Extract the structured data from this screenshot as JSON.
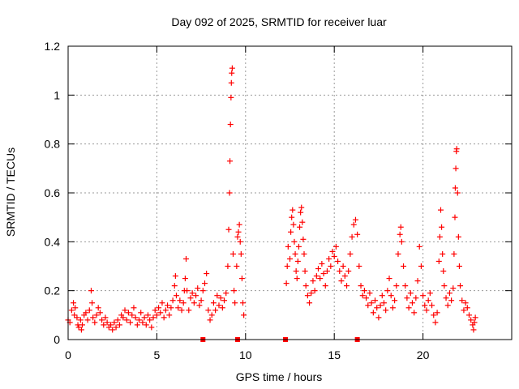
{
  "chart_data": {
    "type": "scatter",
    "title": "Day 092 of 2025, SRMTID for receiver luar",
    "xlabel": "GPS time / hours",
    "ylabel": "SRMTID / TECUs",
    "xlim": [
      0,
      25
    ],
    "ylim": [
      0,
      1.2
    ],
    "xticks": [
      0,
      5,
      10,
      15,
      20
    ],
    "yticks": [
      0,
      0.2,
      0.4,
      0.6,
      0.8,
      1,
      1.2
    ],
    "ytick_labels": [
      "0",
      "0.2",
      "0.4",
      "0.6",
      "0.8",
      "1",
      "1.2"
    ],
    "grid": true,
    "marker": "+",
    "color": "#ff0000",
    "series": [
      {
        "name": "SRMTID",
        "points": [
          [
            0.0,
            0.08
          ],
          [
            0.1,
            0.07
          ],
          [
            0.2,
            0.12
          ],
          [
            0.3,
            0.15
          ],
          [
            0.35,
            0.1
          ],
          [
            0.4,
            0.13
          ],
          [
            0.5,
            0.09
          ],
          [
            0.55,
            0.06
          ],
          [
            0.6,
            0.05
          ],
          [
            0.7,
            0.08
          ],
          [
            0.75,
            0.04
          ],
          [
            0.8,
            0.06
          ],
          [
            0.9,
            0.1
          ],
          [
            1.0,
            0.11
          ],
          [
            1.1,
            0.08
          ],
          [
            1.2,
            0.12
          ],
          [
            1.3,
            0.2
          ],
          [
            1.35,
            0.15
          ],
          [
            1.4,
            0.09
          ],
          [
            1.5,
            0.07
          ],
          [
            1.6,
            0.1
          ],
          [
            1.7,
            0.13
          ],
          [
            1.8,
            0.11
          ],
          [
            1.9,
            0.08
          ],
          [
            2.0,
            0.06
          ],
          [
            2.1,
            0.09
          ],
          [
            2.2,
            0.07
          ],
          [
            2.3,
            0.05
          ],
          [
            2.4,
            0.06
          ],
          [
            2.5,
            0.04
          ],
          [
            2.6,
            0.07
          ],
          [
            2.7,
            0.05
          ],
          [
            2.8,
            0.08
          ],
          [
            2.9,
            0.06
          ],
          [
            3.0,
            0.1
          ],
          [
            3.1,
            0.09
          ],
          [
            3.2,
            0.12
          ],
          [
            3.3,
            0.08
          ],
          [
            3.4,
            0.11
          ],
          [
            3.5,
            0.07
          ],
          [
            3.6,
            0.1
          ],
          [
            3.7,
            0.13
          ],
          [
            3.8,
            0.09
          ],
          [
            3.9,
            0.06
          ],
          [
            4.0,
            0.08
          ],
          [
            4.1,
            0.11
          ],
          [
            4.2,
            0.07
          ],
          [
            4.3,
            0.09
          ],
          [
            4.4,
            0.06
          ],
          [
            4.5,
            0.1
          ],
          [
            4.6,
            0.08
          ],
          [
            4.7,
            0.05
          ],
          [
            4.8,
            0.09
          ],
          [
            4.9,
            0.12
          ],
          [
            5.0,
            0.1
          ],
          [
            5.1,
            0.13
          ],
          [
            5.2,
            0.11
          ],
          [
            5.3,
            0.15
          ],
          [
            5.4,
            0.09
          ],
          [
            5.5,
            0.12
          ],
          [
            5.6,
            0.14
          ],
          [
            5.7,
            0.1
          ],
          [
            5.8,
            0.13
          ],
          [
            5.9,
            0.16
          ],
          [
            6.0,
            0.22
          ],
          [
            6.05,
            0.26
          ],
          [
            6.1,
            0.18
          ],
          [
            6.2,
            0.13
          ],
          [
            6.3,
            0.16
          ],
          [
            6.4,
            0.12
          ],
          [
            6.5,
            0.15
          ],
          [
            6.55,
            0.2
          ],
          [
            6.6,
            0.25
          ],
          [
            6.65,
            0.33
          ],
          [
            6.7,
            0.2
          ],
          [
            6.8,
            0.12
          ],
          [
            6.9,
            0.17
          ],
          [
            7.0,
            0.19
          ],
          [
            7.1,
            0.15
          ],
          [
            7.2,
            0.18
          ],
          [
            7.3,
            0.21
          ],
          [
            7.4,
            0.14
          ],
          [
            7.5,
            0.16
          ],
          [
            7.6,
            0.2
          ],
          [
            7.7,
            0.23
          ],
          [
            7.8,
            0.27
          ],
          [
            7.9,
            0.12
          ],
          [
            8.0,
            0.08
          ],
          [
            8.1,
            0.1
          ],
          [
            8.2,
            0.15
          ],
          [
            8.3,
            0.12
          ],
          [
            8.4,
            0.18
          ],
          [
            8.5,
            0.14
          ],
          [
            8.6,
            0.17
          ],
          [
            8.7,
            0.13
          ],
          [
            8.8,
            0.16
          ],
          [
            8.9,
            0.19
          ],
          [
            9.0,
            0.3
          ],
          [
            9.05,
            0.45
          ],
          [
            9.1,
            0.6
          ],
          [
            9.12,
            0.73
          ],
          [
            9.15,
            0.88
          ],
          [
            9.18,
            0.99
          ],
          [
            9.2,
            1.05
          ],
          [
            9.22,
            1.09
          ],
          [
            9.25,
            1.11
          ],
          [
            9.3,
            0.35
          ],
          [
            9.35,
            0.2
          ],
          [
            9.4,
            0.15
          ],
          [
            9.5,
            0.3
          ],
          [
            9.55,
            0.42
          ],
          [
            9.6,
            0.44
          ],
          [
            9.65,
            0.47
          ],
          [
            9.7,
            0.4
          ],
          [
            9.75,
            0.35
          ],
          [
            9.8,
            0.25
          ],
          [
            9.85,
            0.15
          ],
          [
            9.9,
            0.1
          ],
          [
            12.3,
            0.23
          ],
          [
            12.35,
            0.3
          ],
          [
            12.4,
            0.38
          ],
          [
            12.5,
            0.33
          ],
          [
            12.55,
            0.44
          ],
          [
            12.6,
            0.5
          ],
          [
            12.65,
            0.53
          ],
          [
            12.7,
            0.47
          ],
          [
            12.75,
            0.4
          ],
          [
            12.8,
            0.35
          ],
          [
            12.85,
            0.28
          ],
          [
            12.9,
            0.25
          ],
          [
            12.95,
            0.32
          ],
          [
            13.0,
            0.38
          ],
          [
            13.05,
            0.46
          ],
          [
            13.1,
            0.52
          ],
          [
            13.15,
            0.54
          ],
          [
            13.2,
            0.48
          ],
          [
            13.25,
            0.41
          ],
          [
            13.3,
            0.35
          ],
          [
            13.35,
            0.28
          ],
          [
            13.4,
            0.22
          ],
          [
            13.5,
            0.18
          ],
          [
            13.6,
            0.15
          ],
          [
            13.7,
            0.19
          ],
          [
            13.8,
            0.24
          ],
          [
            13.9,
            0.2
          ],
          [
            14.0,
            0.26
          ],
          [
            14.1,
            0.29
          ],
          [
            14.2,
            0.25
          ],
          [
            14.3,
            0.31
          ],
          [
            14.4,
            0.27
          ],
          [
            14.5,
            0.22
          ],
          [
            14.6,
            0.28
          ],
          [
            14.7,
            0.33
          ],
          [
            14.8,
            0.3
          ],
          [
            14.9,
            0.36
          ],
          [
            15.0,
            0.34
          ],
          [
            15.1,
            0.38
          ],
          [
            15.2,
            0.32
          ],
          [
            15.3,
            0.28
          ],
          [
            15.4,
            0.24
          ],
          [
            15.5,
            0.3
          ],
          [
            15.6,
            0.26
          ],
          [
            15.7,
            0.22
          ],
          [
            15.8,
            0.28
          ],
          [
            15.9,
            0.35
          ],
          [
            16.0,
            0.42
          ],
          [
            16.1,
            0.47
          ],
          [
            16.2,
            0.49
          ],
          [
            16.3,
            0.43
          ],
          [
            16.4,
            0.3
          ],
          [
            16.5,
            0.22
          ],
          [
            16.6,
            0.18
          ],
          [
            16.7,
            0.2
          ],
          [
            16.8,
            0.17
          ],
          [
            16.9,
            0.14
          ],
          [
            17.0,
            0.19
          ],
          [
            17.1,
            0.15
          ],
          [
            17.2,
            0.11
          ],
          [
            17.3,
            0.16
          ],
          [
            17.4,
            0.13
          ],
          [
            17.5,
            0.09
          ],
          [
            17.6,
            0.14
          ],
          [
            17.7,
            0.18
          ],
          [
            17.8,
            0.15
          ],
          [
            17.9,
            0.12
          ],
          [
            18.0,
            0.2
          ],
          [
            18.1,
            0.25
          ],
          [
            18.2,
            0.18
          ],
          [
            18.3,
            0.13
          ],
          [
            18.4,
            0.16
          ],
          [
            18.5,
            0.22
          ],
          [
            18.6,
            0.35
          ],
          [
            18.7,
            0.43
          ],
          [
            18.75,
            0.46
          ],
          [
            18.8,
            0.4
          ],
          [
            18.9,
            0.3
          ],
          [
            19.0,
            0.22
          ],
          [
            19.1,
            0.17
          ],
          [
            19.2,
            0.13
          ],
          [
            19.3,
            0.19
          ],
          [
            19.4,
            0.15
          ],
          [
            19.5,
            0.11
          ],
          [
            19.6,
            0.17
          ],
          [
            19.7,
            0.24
          ],
          [
            19.8,
            0.38
          ],
          [
            19.9,
            0.3
          ],
          [
            20.0,
            0.18
          ],
          [
            20.1,
            0.14
          ],
          [
            20.2,
            0.12
          ],
          [
            20.3,
            0.16
          ],
          [
            20.4,
            0.19
          ],
          [
            20.5,
            0.14
          ],
          [
            20.6,
            0.1
          ],
          [
            20.7,
            0.07
          ],
          [
            20.8,
            0.11
          ],
          [
            20.9,
            0.32
          ],
          [
            20.95,
            0.42
          ],
          [
            21.0,
            0.53
          ],
          [
            21.05,
            0.46
          ],
          [
            21.1,
            0.35
          ],
          [
            21.15,
            0.28
          ],
          [
            21.2,
            0.22
          ],
          [
            21.3,
            0.17
          ],
          [
            21.4,
            0.14
          ],
          [
            21.5,
            0.19
          ],
          [
            21.6,
            0.16
          ],
          [
            21.7,
            0.21
          ],
          [
            21.75,
            0.35
          ],
          [
            21.8,
            0.5
          ],
          [
            21.82,
            0.62
          ],
          [
            21.85,
            0.7
          ],
          [
            21.88,
            0.77
          ],
          [
            21.9,
            0.78
          ],
          [
            21.95,
            0.6
          ],
          [
            22.0,
            0.42
          ],
          [
            22.05,
            0.3
          ],
          [
            22.1,
            0.22
          ],
          [
            22.2,
            0.16
          ],
          [
            22.3,
            0.12
          ],
          [
            22.4,
            0.15
          ],
          [
            22.5,
            0.13
          ],
          [
            22.6,
            0.1
          ],
          [
            22.7,
            0.08
          ],
          [
            22.8,
            0.06
          ],
          [
            22.85,
            0.04
          ],
          [
            22.9,
            0.07
          ],
          [
            22.95,
            0.09
          ]
        ]
      },
      {
        "name": "markers-at-zero",
        "marker": "square",
        "points": [
          [
            7.6,
            0.0
          ],
          [
            9.55,
            0.0
          ],
          [
            12.25,
            0.0
          ],
          [
            16.3,
            0.0
          ]
        ]
      }
    ]
  }
}
